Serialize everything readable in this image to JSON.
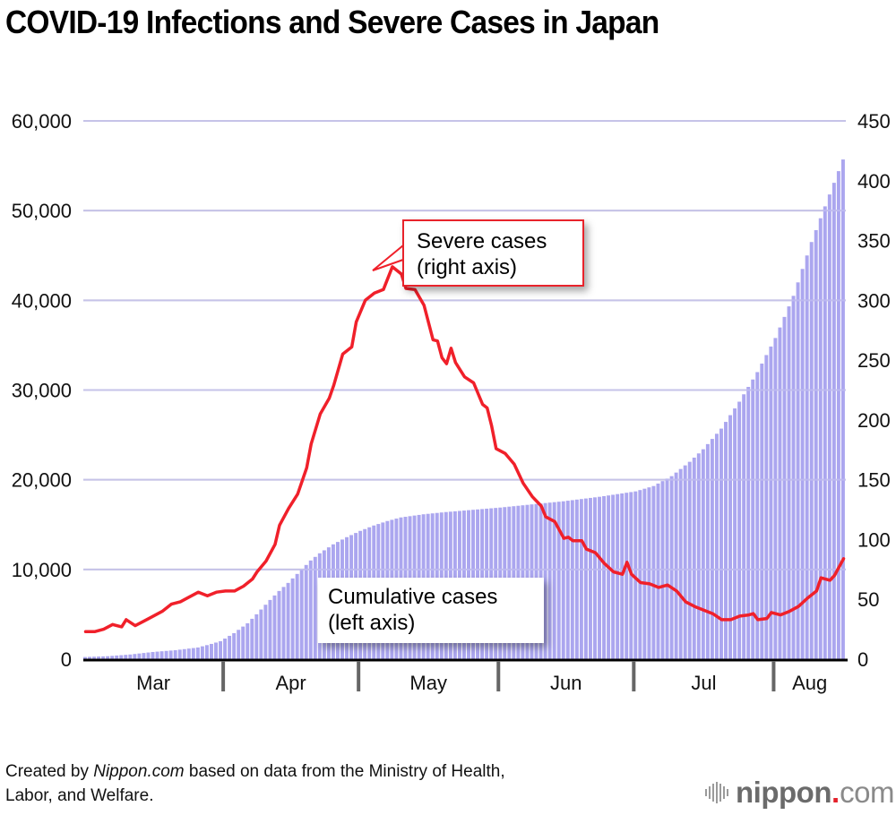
{
  "title": "COVID-19 Infections and Severe Cases in Japan",
  "source_note": {
    "prefix": "Created by ",
    "brand": "Nippon.com",
    "suffix": " based on data from the Ministry of Health,",
    "line2": "Labor, and Welfare."
  },
  "logo": {
    "name": "nippon",
    "dot": ".",
    "tld": "com"
  },
  "annotations": {
    "severe": {
      "line1": "Severe cases",
      "line2": "(right axis)"
    },
    "cumulative": {
      "line1": "Cumulative cases",
      "line2": "(left axis)"
    }
  },
  "colors": {
    "bars": "#aba6ef",
    "line": "#f0202a",
    "grid": "#cccccc"
  },
  "chart_data": {
    "type": "bar+line",
    "title": "COVID-19 Infections and Severe Cases in Japan",
    "x_start": "2020-03-01",
    "x_end": "2020-08-16",
    "x_unit": "day",
    "month_labels": [
      "Mar",
      "Apr",
      "May",
      "Jun",
      "Jul",
      "Aug"
    ],
    "month_day_counts": [
      31,
      30,
      31,
      30,
      31,
      16
    ],
    "left_axis": {
      "label": "Cumulative cases",
      "ylim": [
        0,
        60000
      ],
      "ticks": [
        0,
        10000,
        20000,
        30000,
        40000,
        50000,
        60000
      ],
      "tick_labels": [
        "0",
        "10,000",
        "20,000",
        "30,000",
        "40,000",
        "50,000",
        "60,000"
      ]
    },
    "right_axis": {
      "label": "Severe cases",
      "ylim": [
        0,
        450
      ],
      "ticks": [
        0,
        50,
        100,
        150,
        200,
        250,
        300,
        350,
        400,
        450
      ],
      "tick_labels": [
        "0",
        "50",
        "100",
        "150",
        "200",
        "250",
        "300",
        "350",
        "400",
        "450"
      ]
    },
    "grid": true,
    "series": [
      {
        "name": "Cumulative cases (left axis)",
        "type": "bar",
        "axis": "left",
        "keypoints": [
          [
            0,
            240
          ],
          [
            5,
            330
          ],
          [
            10,
            520
          ],
          [
            15,
            800
          ],
          [
            20,
            1000
          ],
          [
            25,
            1300
          ],
          [
            28,
            1700
          ],
          [
            30,
            2000
          ],
          [
            33,
            2900
          ],
          [
            36,
            4000
          ],
          [
            38,
            5000
          ],
          [
            41,
            6600
          ],
          [
            43,
            7600
          ],
          [
            45,
            8500
          ],
          [
            48,
            10000
          ],
          [
            50,
            11000
          ],
          [
            52,
            11800
          ],
          [
            55,
            12800
          ],
          [
            58,
            13600
          ],
          [
            61,
            14300
          ],
          [
            64,
            14900
          ],
          [
            67,
            15400
          ],
          [
            70,
            15800
          ],
          [
            75,
            16150
          ],
          [
            80,
            16400
          ],
          [
            86,
            16650
          ],
          [
            92,
            16900
          ],
          [
            99,
            17250
          ],
          [
            106,
            17600
          ],
          [
            114,
            18100
          ],
          [
            122,
            18700
          ],
          [
            126,
            19300
          ],
          [
            130,
            20400
          ],
          [
            134,
            22000
          ],
          [
            137,
            23400
          ],
          [
            141,
            25700
          ],
          [
            145,
            28700
          ],
          [
            149,
            32000
          ],
          [
            153,
            35800
          ],
          [
            157,
            40500
          ],
          [
            161,
            46500
          ],
          [
            165,
            51800
          ],
          [
            168,
            55700
          ]
        ]
      },
      {
        "name": "Severe cases (right axis)",
        "type": "line",
        "axis": "right",
        "keypoints": [
          [
            0,
            23
          ],
          [
            2,
            23
          ],
          [
            4,
            25
          ],
          [
            6,
            29
          ],
          [
            8,
            27
          ],
          [
            9,
            33
          ],
          [
            11,
            28
          ],
          [
            13,
            32
          ],
          [
            15,
            36
          ],
          [
            17,
            40
          ],
          [
            19,
            46
          ],
          [
            21,
            48
          ],
          [
            23,
            52
          ],
          [
            25,
            56
          ],
          [
            27,
            53
          ],
          [
            29,
            56
          ],
          [
            31,
            57
          ],
          [
            33,
            57
          ],
          [
            35,
            61
          ],
          [
            37,
            67
          ],
          [
            38,
            73
          ],
          [
            40,
            82
          ],
          [
            42,
            96
          ],
          [
            43,
            112
          ],
          [
            45,
            126
          ],
          [
            47,
            138
          ],
          [
            49,
            160
          ],
          [
            50,
            180
          ],
          [
            52,
            205
          ],
          [
            54,
            218
          ],
          [
            55,
            229
          ],
          [
            57,
            255
          ],
          [
            59,
            261
          ],
          [
            60,
            282
          ],
          [
            62,
            300
          ],
          [
            64,
            306
          ],
          [
            66,
            309
          ],
          [
            68,
            328
          ],
          [
            70,
            322
          ],
          [
            71,
            310
          ],
          [
            73,
            309
          ],
          [
            75,
            296
          ],
          [
            77,
            267
          ],
          [
            78,
            266
          ],
          [
            79,
            252
          ],
          [
            80,
            247
          ],
          [
            81,
            260
          ],
          [
            82,
            248
          ],
          [
            84,
            236
          ],
          [
            86,
            231
          ],
          [
            88,
            213
          ],
          [
            89,
            210
          ],
          [
            90,
            195
          ],
          [
            91,
            176
          ],
          [
            93,
            172
          ],
          [
            95,
            163
          ],
          [
            97,
            147
          ],
          [
            99,
            136
          ],
          [
            101,
            128
          ],
          [
            102,
            119
          ],
          [
            104,
            115
          ],
          [
            106,
            101
          ],
          [
            107,
            102
          ],
          [
            108,
            99
          ],
          [
            110,
            99
          ],
          [
            111,
            92
          ],
          [
            113,
            89
          ],
          [
            115,
            80
          ],
          [
            117,
            73
          ],
          [
            119,
            71
          ],
          [
            120,
            81
          ],
          [
            121,
            71
          ],
          [
            123,
            64
          ],
          [
            125,
            63
          ],
          [
            127,
            60
          ],
          [
            129,
            62
          ],
          [
            131,
            57
          ],
          [
            133,
            48
          ],
          [
            135,
            44
          ],
          [
            137,
            41
          ],
          [
            139,
            38
          ],
          [
            141,
            33
          ],
          [
            143,
            33
          ],
          [
            145,
            36
          ],
          [
            147,
            37
          ],
          [
            148,
            38
          ],
          [
            149,
            33
          ],
          [
            151,
            34
          ],
          [
            152,
            39
          ],
          [
            154,
            37
          ],
          [
            156,
            40
          ],
          [
            158,
            44
          ],
          [
            160,
            51
          ],
          [
            162,
            57
          ],
          [
            163,
            68
          ],
          [
            165,
            66
          ],
          [
            166,
            70
          ],
          [
            168,
            84
          ]
        ]
      }
    ]
  }
}
